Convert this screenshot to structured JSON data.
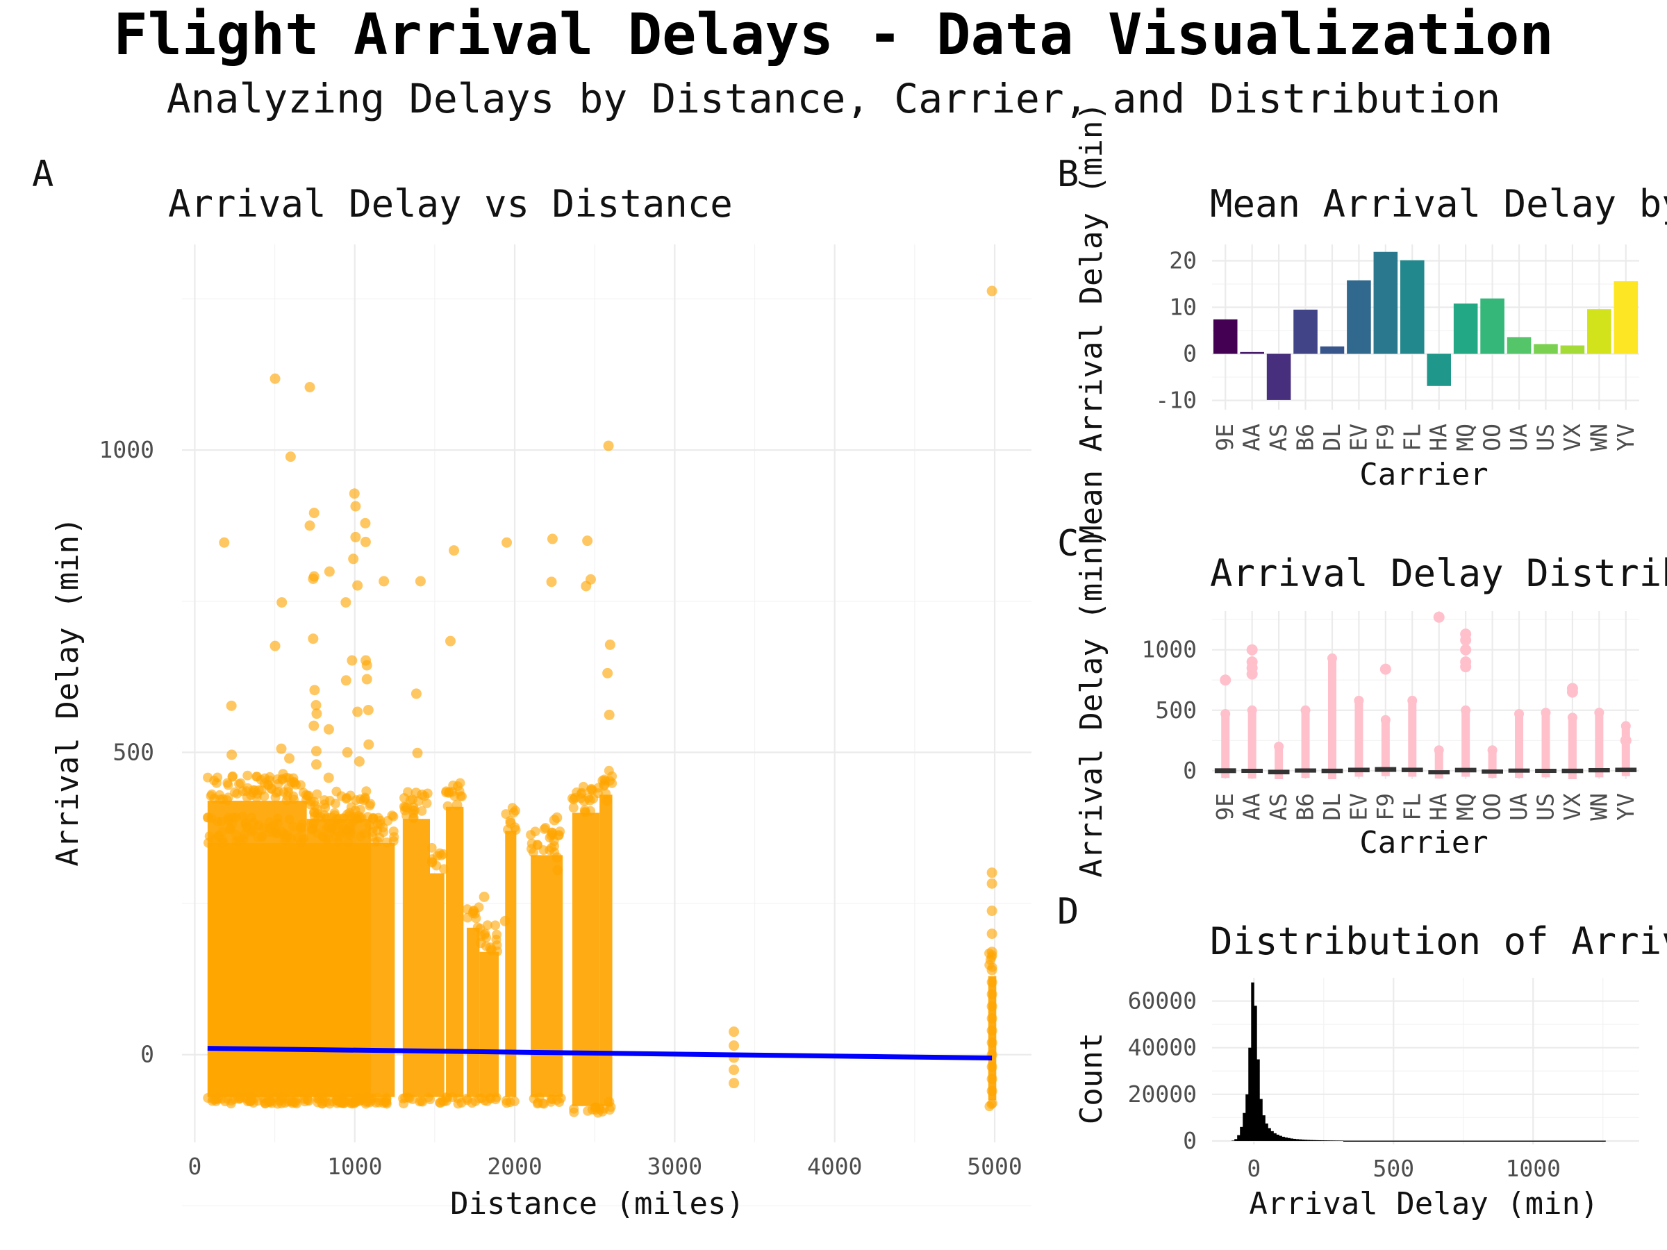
{
  "figure": {
    "title": "Flight Arrival Delays - Data Visualization",
    "subtitle": "Analyzing Delays by Distance, Carrier, and Distribution"
  },
  "chart_data": [
    {
      "tag": "A",
      "type": "scatter",
      "title": "Arrival Delay vs Distance",
      "xlabel": "Distance (miles)",
      "ylabel": "Arrival Delay (min)",
      "xlim": [
        -80,
        5230
      ],
      "ylim": [
        -145,
        1340
      ],
      "x_ticks": [
        0,
        1000,
        2000,
        3000,
        4000,
        5000
      ],
      "y_ticks": [
        0,
        500,
        1000
      ],
      "grid": true,
      "point_color": "#FFA500",
      "trend_color": "#0000FF",
      "trend_line": {
        "x": [
          80,
          4983
        ],
        "y": [
          10.5,
          -5.5
        ]
      },
      "points": [
        [
          184,
          847
        ],
        [
          229,
          577
        ],
        [
          231,
          496
        ],
        [
          502,
          1118
        ],
        [
          502,
          676
        ],
        [
          544,
          748
        ],
        [
          541,
          506
        ],
        [
          591,
          490
        ],
        [
          599,
          989
        ],
        [
          719,
          1104
        ],
        [
          719,
          875
        ],
        [
          740,
          787
        ],
        [
          740,
          688
        ],
        [
          746,
          896
        ],
        [
          746,
          791
        ],
        [
          749,
          603
        ],
        [
          758,
          578
        ],
        [
          762,
          564
        ],
        [
          744,
          544
        ],
        [
          760,
          502
        ],
        [
          760,
          480
        ],
        [
          842,
          799
        ],
        [
          838,
          538
        ],
        [
          837,
          458
        ],
        [
          944,
          748
        ],
        [
          946,
          619
        ],
        [
          954,
          500
        ],
        [
          983,
          652
        ],
        [
          991,
          820
        ],
        [
          998,
          928
        ],
        [
          1005,
          907
        ],
        [
          1005,
          856
        ],
        [
          1017,
          776
        ],
        [
          1017,
          567
        ],
        [
          1029,
          485
        ],
        [
          1066,
          879
        ],
        [
          1068,
          848
        ],
        [
          1069,
          652
        ],
        [
          1076,
          644
        ],
        [
          1076,
          621
        ],
        [
          1085,
          570
        ],
        [
          1087,
          513
        ],
        [
          1182,
          783
        ],
        [
          1411,
          783
        ],
        [
          1385,
          597
        ],
        [
          1392,
          499
        ],
        [
          1598,
          684
        ],
        [
          1620,
          834
        ],
        [
          1950,
          847
        ],
        [
          2236,
          853
        ],
        [
          2230,
          782
        ],
        [
          2454,
          850
        ],
        [
          2446,
          775
        ],
        [
          2475,
          786
        ],
        [
          2586,
          1007
        ],
        [
          2580,
          631
        ],
        [
          2596,
          678
        ],
        [
          2591,
          562
        ],
        [
          1383,
          433
        ],
        [
          1421,
          430
        ],
        [
          1639,
          413
        ],
        [
          1809,
          261
        ],
        [
          1848,
          177
        ],
        [
          1974,
          383
        ],
        [
          2248,
          388
        ],
        [
          2264,
          392
        ],
        [
          2264,
          326
        ],
        [
          2268,
          305
        ],
        [
          2434,
          420
        ],
        [
          2470,
          421
        ],
        [
          2560,
          447
        ],
        [
          2576,
          420
        ],
        [
          1940,
          221
        ],
        [
          1788,
          185
        ],
        [
          3370,
          38
        ],
        [
          3370,
          15
        ],
        [
          3370,
          -5
        ],
        [
          3370,
          -25
        ],
        [
          3370,
          -47
        ],
        [
          4983,
          1263
        ],
        [
          4983,
          301
        ],
        [
          4983,
          283
        ],
        [
          4983,
          238
        ],
        [
          4983,
          200
        ],
        [
          4983,
          170
        ],
        [
          4983,
          140
        ],
        [
          4983,
          120
        ],
        [
          4983,
          100
        ],
        [
          4983,
          80
        ],
        [
          4983,
          60
        ],
        [
          4983,
          40
        ],
        [
          4983,
          20
        ],
        [
          4983,
          0
        ],
        [
          4983,
          -20
        ],
        [
          4983,
          -40
        ],
        [
          4983,
          -60
        ],
        [
          2590,
          -78
        ]
      ],
      "point_bands": [
        {
          "x": [
            80,
            1250
          ],
          "y": [
            -70,
            350
          ]
        },
        {
          "x": [
            80,
            700
          ],
          "y": [
            -70,
            420
          ]
        },
        {
          "x": [
            700,
            1100
          ],
          "y": [
            -70,
            390
          ]
        },
        {
          "x": [
            1300,
            1470
          ],
          "y": [
            -70,
            390
          ]
        },
        {
          "x": [
            1470,
            1560
          ],
          "y": [
            -70,
            300
          ]
        },
        {
          "x": [
            1570,
            1680
          ],
          "y": [
            -70,
            410
          ]
        },
        {
          "x": [
            1700,
            1780
          ],
          "y": [
            -70,
            210
          ]
        },
        {
          "x": [
            1780,
            1900
          ],
          "y": [
            -70,
            170
          ]
        },
        {
          "x": [
            1940,
            2010
          ],
          "y": [
            -70,
            370
          ]
        },
        {
          "x": [
            2100,
            2300
          ],
          "y": [
            -70,
            330
          ]
        },
        {
          "x": [
            2360,
            2530
          ],
          "y": [
            -85,
            400
          ]
        },
        {
          "x": [
            2530,
            2610
          ],
          "y": [
            -85,
            430
          ]
        },
        {
          "x": [
            4960,
            5010
          ],
          "y": [
            -75,
            130
          ]
        }
      ]
    },
    {
      "tag": "B",
      "type": "bar",
      "title": "Mean Arrival Delay by Carrier",
      "xlabel": "Carrier",
      "ylabel": "Mean Arrival Delay (min)",
      "ylim": [
        -12,
        23.5
      ],
      "y_ticks": [
        -10,
        0,
        10,
        20
      ],
      "categories": [
        "9E",
        "AA",
        "AS",
        "B6",
        "DL",
        "EV",
        "F9",
        "FL",
        "HA",
        "MQ",
        "OO",
        "UA",
        "US",
        "VX",
        "WN",
        "YV"
      ],
      "values": [
        7.4,
        0.4,
        -9.9,
        9.5,
        1.6,
        15.8,
        21.9,
        20.1,
        -6.9,
        10.8,
        11.9,
        3.6,
        2.1,
        1.8,
        9.6,
        15.6
      ],
      "colors": [
        "#440154",
        "#481A6C",
        "#472F7D",
        "#414487",
        "#39568C",
        "#31688E",
        "#2A788E",
        "#23888E",
        "#1F988B",
        "#22A884",
        "#35B779",
        "#54C568",
        "#7AD151",
        "#A5DB36",
        "#D2E21B",
        "#FDE725"
      ]
    },
    {
      "tag": "C",
      "type": "box",
      "title": "Arrival Delay Distribution by Carrier",
      "xlabel": "Carrier",
      "ylabel": "Arrival Delay (min)",
      "ylim": [
        -70,
        1320
      ],
      "y_ticks": [
        0,
        500,
        1000
      ],
      "point_color": "#FFC0CB",
      "box_color": "#333333",
      "categories": [
        "9E",
        "AA",
        "AS",
        "B6",
        "DL",
        "EV",
        "F9",
        "FL",
        "HA",
        "MQ",
        "OO",
        "UA",
        "US",
        "VX",
        "WN",
        "YV"
      ],
      "box_q1": [
        -20,
        -18,
        -30,
        -16,
        -20,
        -13,
        -10,
        -12,
        -25,
        -14,
        -20,
        -16,
        -16,
        -20,
        -14,
        -12
      ],
      "box_q3": [
        20,
        16,
        8,
        19,
        17,
        25,
        30,
        25,
        4,
        24,
        10,
        18,
        16,
        17,
        22,
        25
      ],
      "whisker_low": [
        -60,
        -65,
        -70,
        -60,
        -70,
        -50,
        -45,
        -50,
        -65,
        -50,
        -60,
        -60,
        -55,
        -70,
        -55,
        -45
      ],
      "whisker_high": [
        470,
        500,
        200,
        500,
        930,
        580,
        420,
        580,
        170,
        500,
        170,
        470,
        480,
        440,
        480,
        370
      ],
      "outliers": [
        [
          750
        ],
        [
          1000,
          900,
          850,
          800
        ],
        [],
        [],
        [],
        [],
        [
          840
        ],
        [],
        [
          1270
        ],
        [
          1130,
          1080,
          1000,
          900,
          860
        ],
        [],
        [],
        [],
        [
          680,
          650
        ],
        [],
        [
          250
        ]
      ]
    },
    {
      "tag": "D",
      "type": "bar",
      "title": "Distribution of Arrival Delays",
      "xlabel": "Arrival Delay (min)",
      "ylabel": "Count",
      "xlim": [
        -150,
        1380
      ],
      "ylim": [
        -1500,
        70000
      ],
      "x_ticks": [
        0,
        500,
        1000
      ],
      "y_ticks": [
        0,
        20000,
        40000,
        60000
      ],
      "bar_color": "#000000",
      "bin_width": 10,
      "bins_x": [
        -80,
        -70,
        -60,
        -50,
        -40,
        -30,
        -20,
        -10,
        0,
        10,
        20,
        30,
        40,
        50,
        60,
        70,
        80,
        90,
        100,
        110,
        120,
        130,
        140,
        150,
        160,
        170,
        180,
        190,
        200,
        210,
        220,
        230,
        240,
        250,
        260,
        270,
        280,
        290,
        300,
        310
      ],
      "bins_count": [
        150,
        800,
        2500,
        6000,
        12000,
        20000,
        40000,
        68000,
        58000,
        35000,
        18000,
        11000,
        7500,
        5500,
        4200,
        3300,
        2700,
        2200,
        1800,
        1500,
        1250,
        1050,
        900,
        780,
        680,
        590,
        520,
        460,
        410,
        370,
        330,
        300,
        270,
        250,
        230,
        210,
        195,
        180,
        170,
        160
      ],
      "tail_x": [
        320,
        1260
      ],
      "tail_count": 120
    }
  ]
}
